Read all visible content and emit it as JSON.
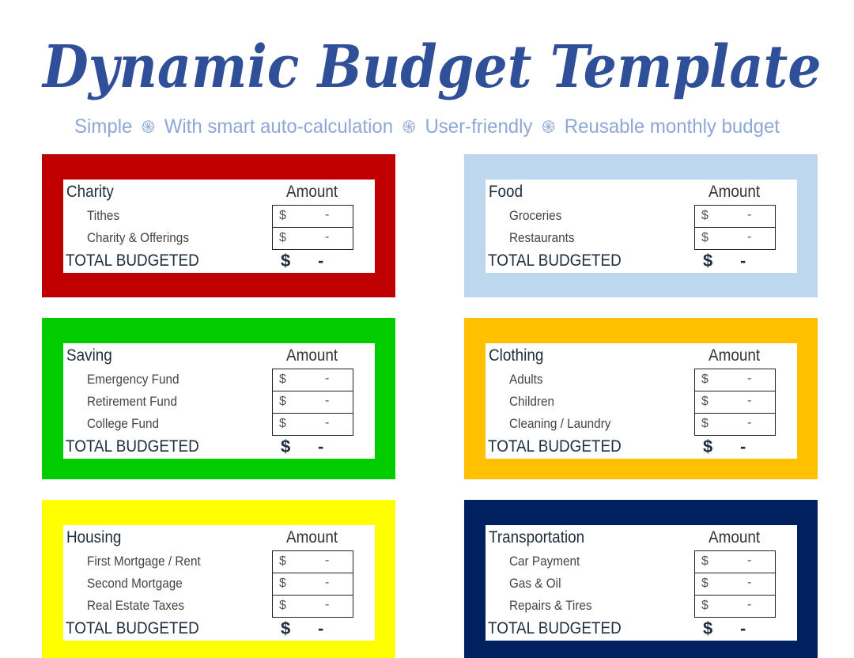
{
  "title": "Dynamic Budget Template",
  "subtitle": [
    "Simple",
    "With smart auto-calculation",
    "User-friendly",
    "Reusable monthly budget"
  ],
  "separator_icon": "swirl-icon",
  "amount_header": "Amount",
  "total_label": "TOTAL BUDGETED",
  "currency": "$",
  "empty_value": "-",
  "cards": [
    {
      "name": "Charity",
      "color": "#c00000",
      "items": [
        "Tithes",
        "Charity & Offerings"
      ]
    },
    {
      "name": "Food",
      "color": "#bdd7ee",
      "items": [
        "Groceries",
        "Restaurants"
      ]
    },
    {
      "name": "Saving",
      "color": "#00cc00",
      "items": [
        "Emergency Fund",
        "Retirement Fund",
        "College Fund"
      ]
    },
    {
      "name": "Clothing",
      "color": "#ffc000",
      "items": [
        "Adults",
        "Children",
        "Cleaning / Laundry"
      ]
    },
    {
      "name": "Housing",
      "color": "#ffff00",
      "items": [
        "First Mortgage / Rent",
        "Second Mortgage",
        "Real Estate Taxes"
      ]
    },
    {
      "name": "Transportation",
      "color": "#002060",
      "items": [
        "Car Payment",
        "Gas & Oil",
        "Repairs & Tires"
      ]
    }
  ]
}
